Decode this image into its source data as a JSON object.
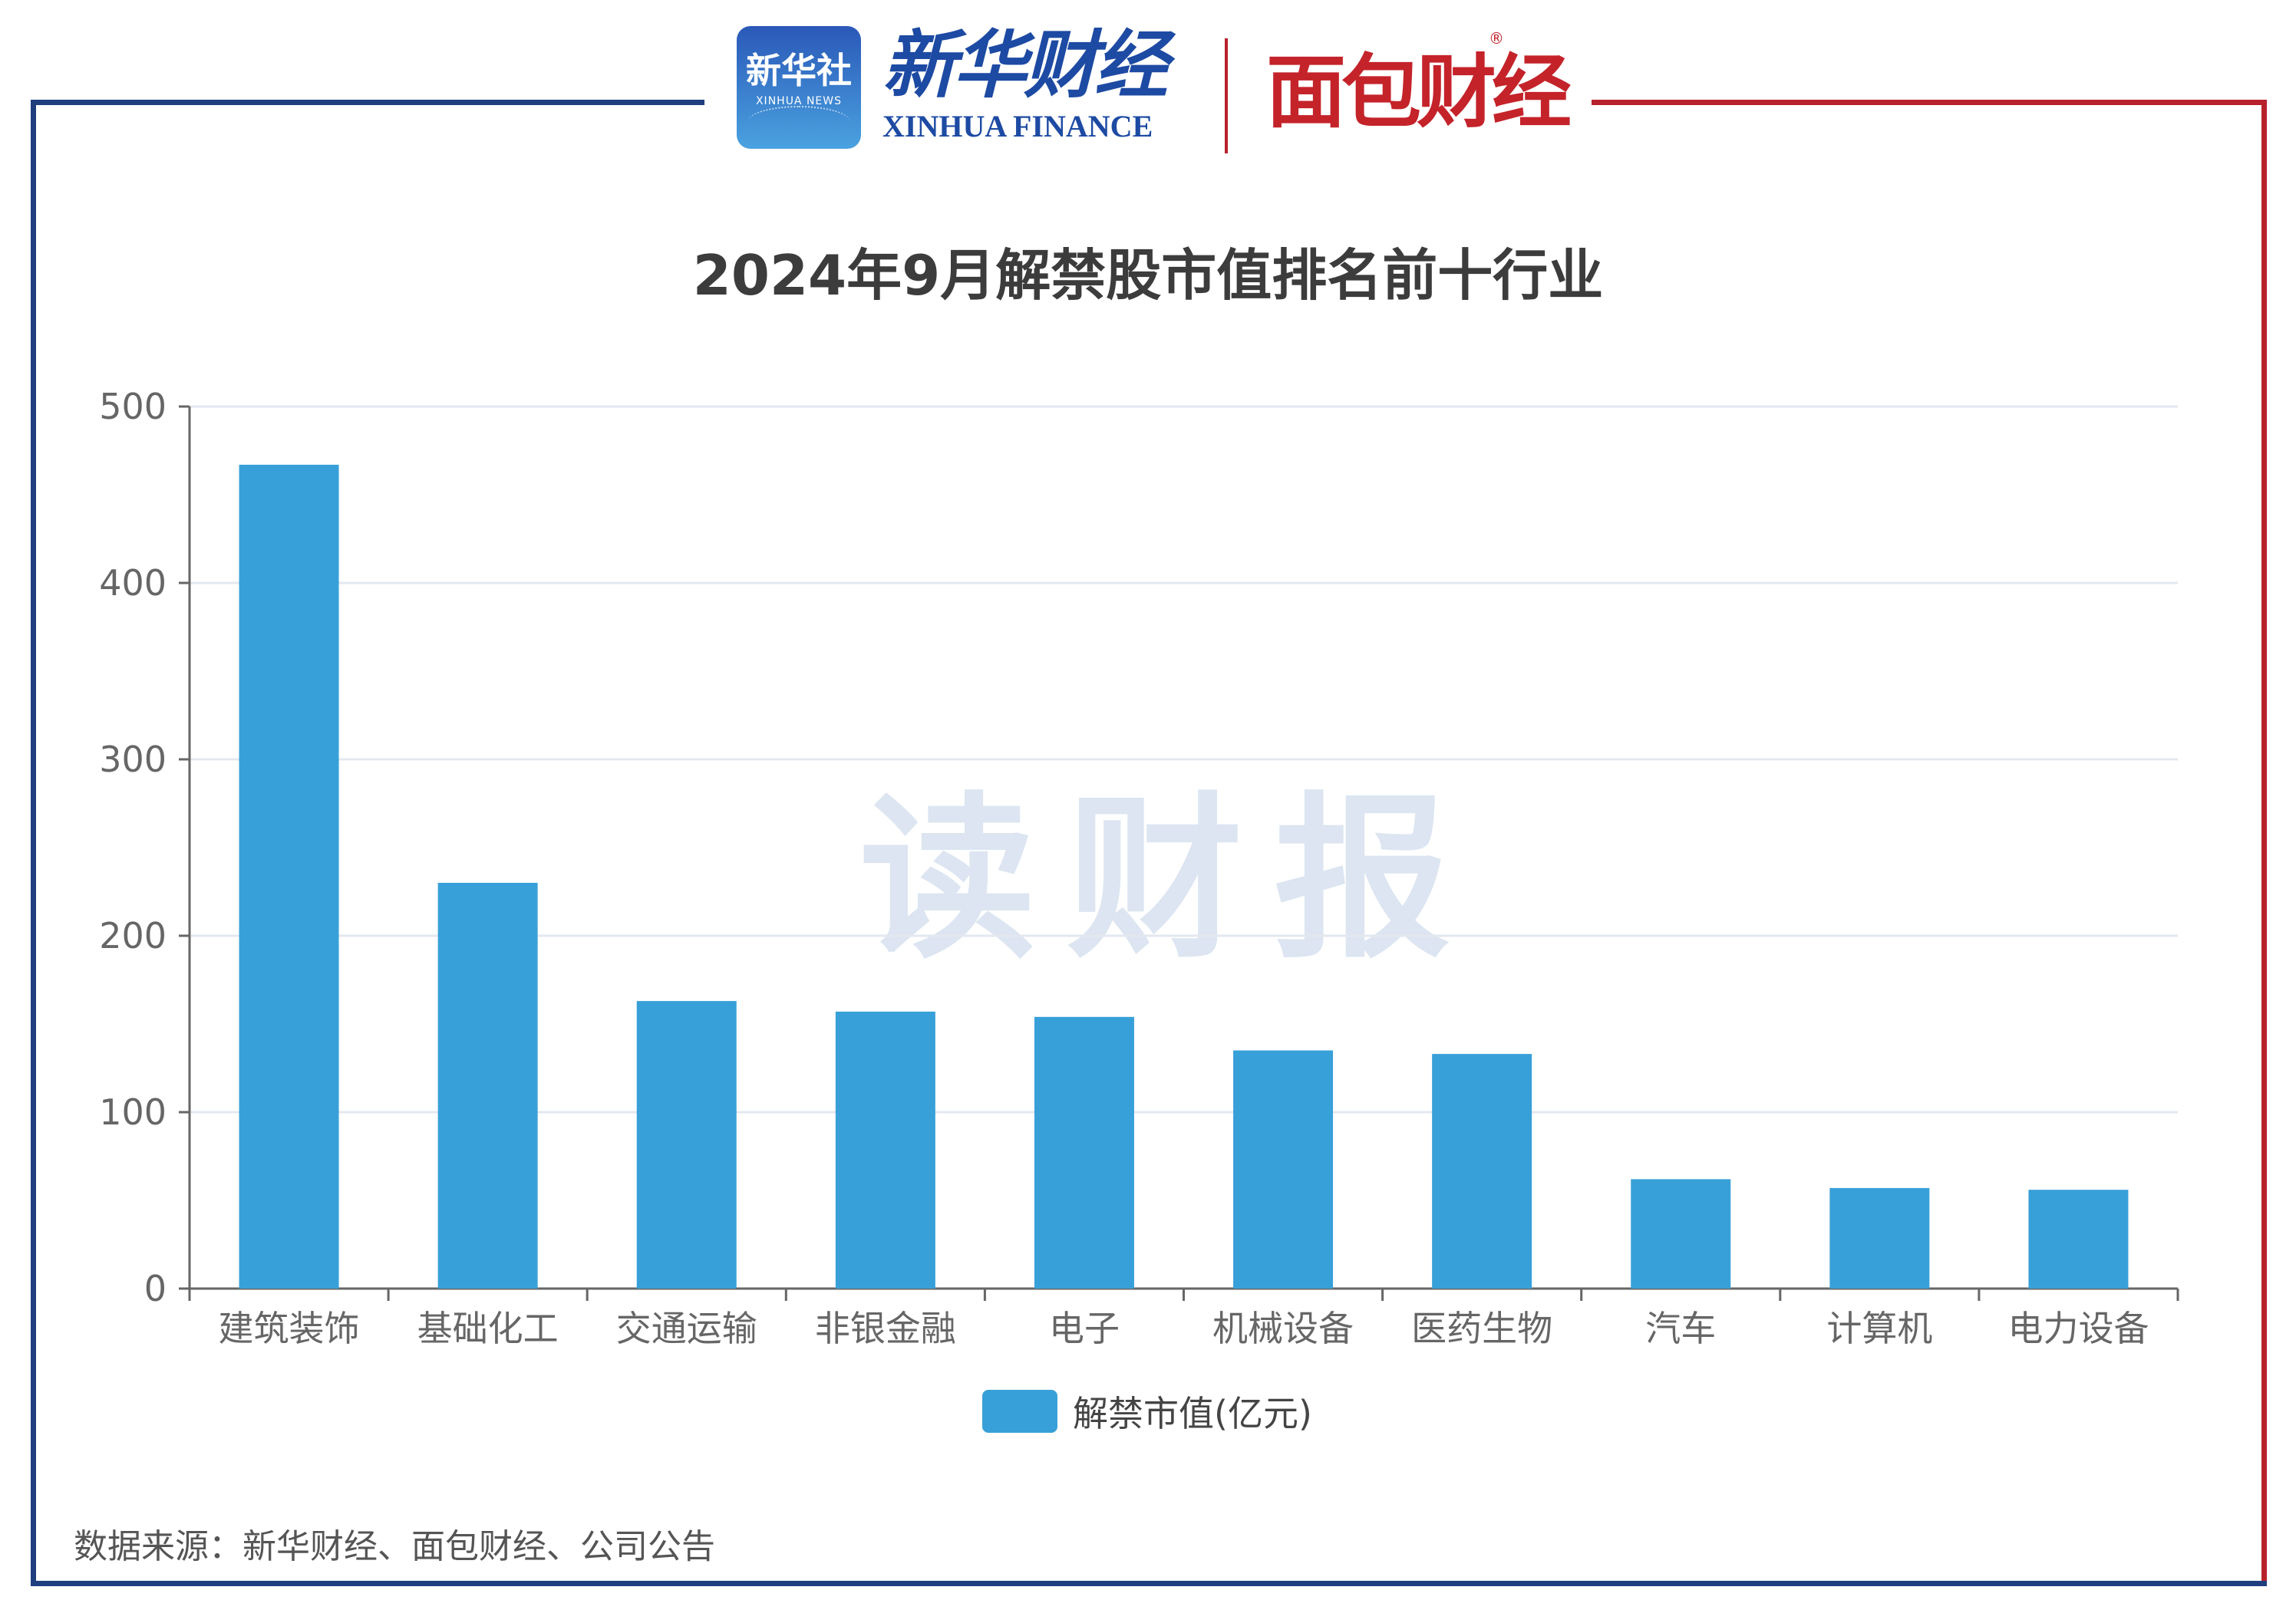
{
  "header": {
    "xinhua_badge": "新华社",
    "xinhua_badge_en": "XINHUA NEWS",
    "xinhua_finance_cn": "新华财经",
    "xinhua_finance_en": "XINHUA FINANCE",
    "mianbao": "面包财经",
    "registered_mark": "®"
  },
  "watermark": "读财报",
  "source": "数据来源：新华财经、面包财经、公司公告",
  "colors": {
    "bar": "#38a0d8",
    "frame_blue": "#1f3f7f",
    "frame_red": "#b8222c"
  },
  "chart_data": {
    "type": "bar",
    "title": "2024年9月解禁股市值排名前十行业",
    "categories": [
      "建筑装饰",
      "基础化工",
      "交通运输",
      "非银金融",
      "电子",
      "机械设备",
      "医药生物",
      "汽车",
      "计算机",
      "电力设备"
    ],
    "series": [
      {
        "name": "解禁市值(亿元)",
        "values": [
          467,
          230,
          163,
          157,
          154,
          135,
          133,
          62,
          57,
          56
        ]
      }
    ],
    "yticks": [
      0,
      100,
      200,
      300,
      400,
      500
    ],
    "ylim": [
      0,
      500
    ],
    "grid": true,
    "legend": "bottom"
  }
}
